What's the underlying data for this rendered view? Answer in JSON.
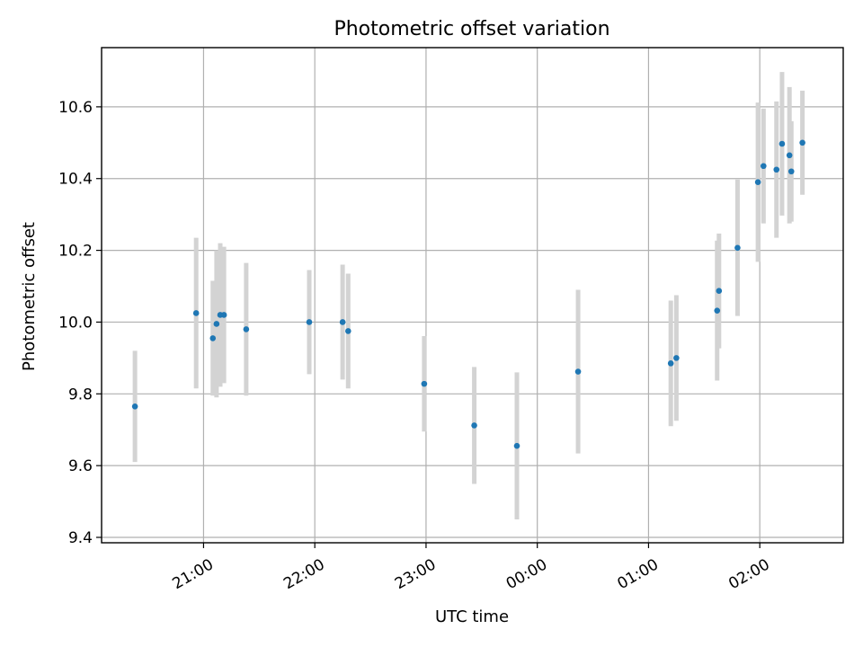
{
  "chart_data": {
    "type": "scatter",
    "title": "Photometric offset variation",
    "xlabel": "UTC time",
    "ylabel": "Photometric offset",
    "x_axis": {
      "type": "time",
      "start": "2000-01-01T20:05",
      "end": "2000-01-02T02:45",
      "ticks": [
        {
          "t": "2000-01-01T21:00",
          "label": "21:00"
        },
        {
          "t": "2000-01-01T22:00",
          "label": "22:00"
        },
        {
          "t": "2000-01-01T23:00",
          "label": "23:00"
        },
        {
          "t": "2000-01-02T00:00",
          "label": "00:00"
        },
        {
          "t": "2000-01-02T01:00",
          "label": "01:00"
        },
        {
          "t": "2000-01-02T02:00",
          "label": "02:00"
        }
      ]
    },
    "ylim": [
      9.385,
      10.765
    ],
    "yticks": [
      {
        "v": 9.4,
        "label": "9.4"
      },
      {
        "v": 9.6,
        "label": "9.6"
      },
      {
        "v": 9.8,
        "label": "9.8"
      },
      {
        "v": 10.0,
        "label": "10.0"
      },
      {
        "v": 10.2,
        "label": "10.2"
      },
      {
        "v": 10.4,
        "label": "10.4"
      },
      {
        "v": 10.6,
        "label": "10.6"
      }
    ],
    "grid": true,
    "marker_color": "#1f77b4",
    "errorbar_color": "#d3d3d3",
    "series": [
      {
        "points": [
          {
            "t": "2000-01-01T20:23",
            "y": 9.765,
            "err": 0.155
          },
          {
            "t": "2000-01-01T20:56",
            "y": 10.025,
            "err": 0.21
          },
          {
            "t": "2000-01-01T21:05",
            "y": 9.955,
            "err": 0.16
          },
          {
            "t": "2000-01-01T21:07",
            "y": 9.995,
            "err": 0.205
          },
          {
            "t": "2000-01-01T21:09",
            "y": 10.02,
            "err": 0.2
          },
          {
            "t": "2000-01-01T21:11",
            "y": 10.02,
            "err": 0.19
          },
          {
            "t": "2000-01-01T21:23",
            "y": 9.98,
            "err": 0.185
          },
          {
            "t": "2000-01-01T21:57",
            "y": 10.0,
            "err": 0.145
          },
          {
            "t": "2000-01-01T22:15",
            "y": 10.0,
            "err": 0.16
          },
          {
            "t": "2000-01-01T22:18",
            "y": 9.975,
            "err": 0.16
          },
          {
            "t": "2000-01-01T22:59",
            "y": 9.828,
            "err": 0.133
          },
          {
            "t": "2000-01-01T23:26",
            "y": 9.712,
            "err": 0.163
          },
          {
            "t": "2000-01-01T23:49",
            "y": 9.655,
            "err": 0.205
          },
          {
            "t": "2000-01-02T00:22",
            "y": 9.862,
            "err": 0.228
          },
          {
            "t": "2000-01-02T01:12",
            "y": 9.885,
            "err": 0.175
          },
          {
            "t": "2000-01-02T01:15",
            "y": 9.9,
            "err": 0.175
          },
          {
            "t": "2000-01-02T01:37",
            "y": 10.032,
            "err": 0.195
          },
          {
            "t": "2000-01-02T01:38",
            "y": 10.087,
            "err": 0.16
          },
          {
            "t": "2000-01-02T01:48",
            "y": 10.207,
            "err": 0.19
          },
          {
            "t": "2000-01-02T01:59",
            "y": 10.39,
            "err": 0.222
          },
          {
            "t": "2000-01-02T02:02",
            "y": 10.435,
            "err": 0.16
          },
          {
            "t": "2000-01-02T02:09",
            "y": 10.425,
            "err": 0.19
          },
          {
            "t": "2000-01-02T02:12",
            "y": 10.497,
            "err": 0.2
          },
          {
            "t": "2000-01-02T02:16",
            "y": 10.465,
            "err": 0.19
          },
          {
            "t": "2000-01-02T02:17",
            "y": 10.42,
            "err": 0.14
          },
          {
            "t": "2000-01-02T02:23",
            "y": 10.5,
            "err": 0.145
          }
        ]
      }
    ]
  }
}
